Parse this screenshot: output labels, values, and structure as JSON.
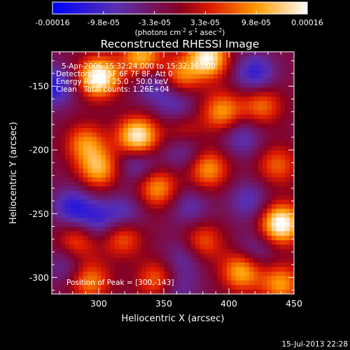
{
  "chart_data": {
    "type": "heatmap",
    "title": "Reconstructed RHESSI Image",
    "xlabel": "Heliocentric X (arcsec)",
    "ylabel": "Heliocentric Y (arcsec)",
    "xlim": [
      264,
      450
    ],
    "ylim": [
      -313,
      -123
    ],
    "x_ticks": [
      300,
      350,
      400,
      450
    ],
    "y_ticks": [
      -150,
      -200,
      -250,
      -300
    ],
    "colorbar": {
      "ticks": [
        "-0.00016",
        "-9.8e-05",
        "-3.3e-05",
        "3.3e-05",
        "9.8e-05",
        "0.00016"
      ],
      "range": [
        -0.00016,
        0.00016
      ],
      "colormap": "blue-purple-red-orange-yellow-white"
    },
    "annotations": [
      "5-Apr-2006 15:32:24.000 to 15:32:36.000",
      "Detectors: 4F 5F 6F 7F 8F, Att 0",
      "Energy Range: 25.0 - 50.0 keV",
      "Clean   Total counts: 1.26E+04"
    ],
    "peak_label": "Position of Peak = [300,-143]",
    "peak_position": [
      300,
      -143
    ],
    "hotspots": [
      {
        "x": 300,
        "y": -143,
        "v": 1.0
      },
      {
        "x": 330,
        "y": -190,
        "v": 0.95
      },
      {
        "x": 440,
        "y": -258,
        "v": 1.0
      },
      {
        "x": 384,
        "y": -128,
        "v": 0.9
      },
      {
        "x": 333,
        "y": -128,
        "v": 0.7
      },
      {
        "x": 362,
        "y": -142,
        "v": 0.55
      },
      {
        "x": 384,
        "y": -215,
        "v": 0.6
      },
      {
        "x": 300,
        "y": -215,
        "v": 0.65
      },
      {
        "x": 290,
        "y": -195,
        "v": 0.55
      },
      {
        "x": 345,
        "y": -230,
        "v": 0.6
      },
      {
        "x": 395,
        "y": -170,
        "v": 0.6
      },
      {
        "x": 425,
        "y": -165,
        "v": 0.5
      },
      {
        "x": 318,
        "y": -268,
        "v": 0.5
      },
      {
        "x": 380,
        "y": -272,
        "v": 0.45
      },
      {
        "x": 283,
        "y": -272,
        "v": 0.45
      },
      {
        "x": 410,
        "y": -295,
        "v": 0.7
      },
      {
        "x": 345,
        "y": -302,
        "v": 0.5
      },
      {
        "x": 293,
        "y": -303,
        "v": 0.55
      },
      {
        "x": 440,
        "y": -305,
        "v": 0.6
      },
      {
        "x": 437,
        "y": -212,
        "v": 0.45
      },
      {
        "x": 365,
        "y": -185,
        "v": 0.35
      }
    ],
    "coldspots": [
      {
        "x": 265,
        "y": -150,
        "v": -0.55
      },
      {
        "x": 343,
        "y": -148,
        "v": -0.4
      },
      {
        "x": 420,
        "y": -140,
        "v": -0.5
      },
      {
        "x": 360,
        "y": -165,
        "v": -0.35
      },
      {
        "x": 280,
        "y": -245,
        "v": -0.5
      },
      {
        "x": 300,
        "y": -255,
        "v": -0.4
      },
      {
        "x": 320,
        "y": -250,
        "v": -0.35
      },
      {
        "x": 330,
        "y": -210,
        "v": -0.4
      },
      {
        "x": 370,
        "y": -245,
        "v": -0.3
      },
      {
        "x": 415,
        "y": -240,
        "v": -0.35
      },
      {
        "x": 365,
        "y": -200,
        "v": -0.35
      },
      {
        "x": 410,
        "y": -190,
        "v": -0.35
      },
      {
        "x": 365,
        "y": -285,
        "v": -0.3
      },
      {
        "x": 420,
        "y": -280,
        "v": -0.3
      },
      {
        "x": 275,
        "y": -290,
        "v": -0.3
      },
      {
        "x": 360,
        "y": -310,
        "v": -0.3
      }
    ]
  },
  "timestamp": "15-Jul-2013 22:28"
}
